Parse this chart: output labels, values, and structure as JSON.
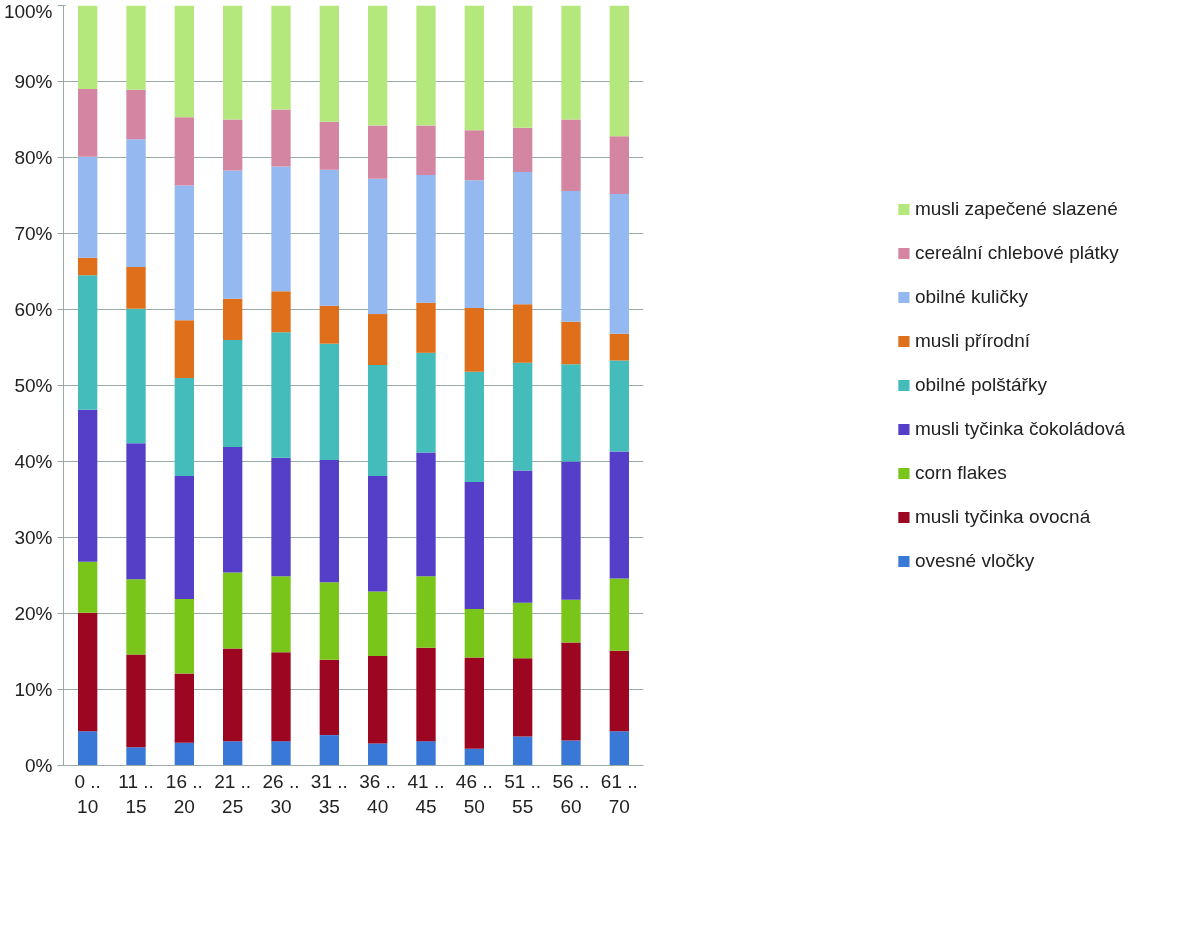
{
  "chart_data": {
    "type": "bar",
    "stacked": true,
    "categories": [
      "0 ..\n10",
      "11 ..\n15",
      "16 ..\n20",
      "21 ..\n25",
      "26 ..\n30",
      "31 ..\n35",
      "36 ..\n40",
      "41 ..\n45",
      "46 ..\n50",
      "51 ..\n55",
      "56 ..\n60",
      "61 ..\n70"
    ],
    "ylim": [
      0,
      100
    ],
    "yticks": [
      {
        "value": 0,
        "label": "0%"
      },
      {
        "value": 10,
        "label": "10%"
      },
      {
        "value": 20,
        "label": "20%"
      },
      {
        "value": 30,
        "label": "30%"
      },
      {
        "value": 40,
        "label": "40%"
      },
      {
        "value": 50,
        "label": "50%"
      },
      {
        "value": 60,
        "label": "60%"
      },
      {
        "value": 70,
        "label": "70%"
      },
      {
        "value": 80,
        "label": "80%"
      },
      {
        "value": 90,
        "label": "90%"
      },
      {
        "value": 100,
        "label": "100%"
      }
    ],
    "grid": "y",
    "legend": "right",
    "series": [
      {
        "name": "ovesné vločky",
        "color": "#3a78d8",
        "values": [
          4.5,
          2.4,
          3.0,
          3.2,
          3.2,
          4.0,
          2.9,
          3.2,
          2.2,
          3.8,
          3.3,
          4.5
        ]
      },
      {
        "name": "musli tyčinka ovocná",
        "color": "#9c0620",
        "values": [
          15.6,
          12.2,
          9.1,
          12.2,
          11.7,
          9.9,
          11.5,
          12.3,
          12.0,
          10.3,
          12.9,
          10.6
        ]
      },
      {
        "name": "corn flakes",
        "color": "#7ac51a",
        "values": [
          6.7,
          9.9,
          9.8,
          10.0,
          10.0,
          10.2,
          8.5,
          9.4,
          6.4,
          7.3,
          5.6,
          9.5
        ]
      },
      {
        "name": "musli tyčinka čokoládová",
        "color": "#553ec8",
        "values": [
          20.0,
          17.9,
          16.2,
          16.5,
          15.6,
          16.1,
          15.2,
          16.3,
          16.7,
          17.4,
          18.2,
          16.7
        ]
      },
      {
        "name": "obilné polštářky",
        "color": "#44bcbc",
        "values": [
          17.7,
          17.7,
          12.9,
          14.1,
          16.5,
          15.3,
          14.6,
          13.1,
          14.5,
          14.2,
          12.8,
          12.0
        ]
      },
      {
        "name": "musli přírodní",
        "color": "#df6f1a",
        "values": [
          2.3,
          5.5,
          7.6,
          5.4,
          5.4,
          5.0,
          6.7,
          6.6,
          8.4,
          7.7,
          5.6,
          3.5
        ]
      },
      {
        "name": "obilné kuličky",
        "color": "#93b9f0",
        "values": [
          13.3,
          16.8,
          17.7,
          16.9,
          16.4,
          17.9,
          17.8,
          16.8,
          16.8,
          17.4,
          17.2,
          18.4
        ]
      },
      {
        "name": "cereální chlebové plátky",
        "color": "#d485a2",
        "values": [
          8.9,
          6.5,
          9.0,
          6.7,
          7.5,
          6.3,
          7.0,
          6.5,
          6.6,
          5.8,
          9.4,
          7.6
        ]
      },
      {
        "name": "musli zapečené slazené",
        "color": "#b4e87c",
        "values": [
          11.0,
          11.1,
          14.7,
          15.0,
          13.7,
          15.3,
          15.8,
          15.8,
          16.4,
          16.1,
          15.0,
          17.2
        ]
      }
    ]
  }
}
